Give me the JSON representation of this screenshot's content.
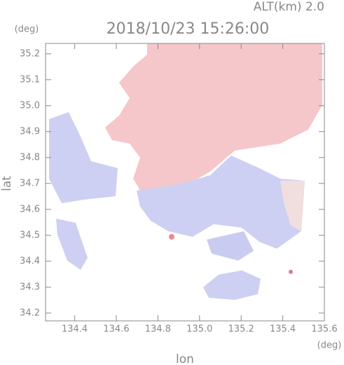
{
  "chart_data": {
    "type": "map",
    "title": "2018/10/23 15:26:00",
    "subtitle": "ALT(km) 2.0",
    "x_label": "lon",
    "y_label": "lat",
    "x_unit": "(deg)",
    "y_unit": "(deg)",
    "xlim": [
      134.26,
      135.6
    ],
    "ylim": [
      34.17,
      35.24
    ],
    "xticks": [
      {
        "value": 134.4,
        "label": "134.4"
      },
      {
        "value": 134.6,
        "label": "134.6"
      },
      {
        "value": 134.8,
        "label": "134.8"
      },
      {
        "value": 135.0,
        "label": "135.0"
      },
      {
        "value": 135.2,
        "label": "135.2"
      },
      {
        "value": 135.4,
        "label": "135.4"
      },
      {
        "value": 135.6,
        "label": "135.6"
      }
    ],
    "yticks": [
      {
        "value": 34.2,
        "label": "34.2"
      },
      {
        "value": 34.3,
        "label": "34.3"
      },
      {
        "value": 34.4,
        "label": "34.4"
      },
      {
        "value": 34.5,
        "label": "34.5"
      },
      {
        "value": 34.6,
        "label": "34.6"
      },
      {
        "value": 34.7,
        "label": "34.7"
      },
      {
        "value": 34.8,
        "label": "34.8"
      },
      {
        "value": 34.9,
        "label": "34.9"
      },
      {
        "value": 35.0,
        "label": "35.0"
      },
      {
        "value": 35.1,
        "label": "35.1"
      },
      {
        "value": 35.2,
        "label": "35.2"
      }
    ]
  }
}
